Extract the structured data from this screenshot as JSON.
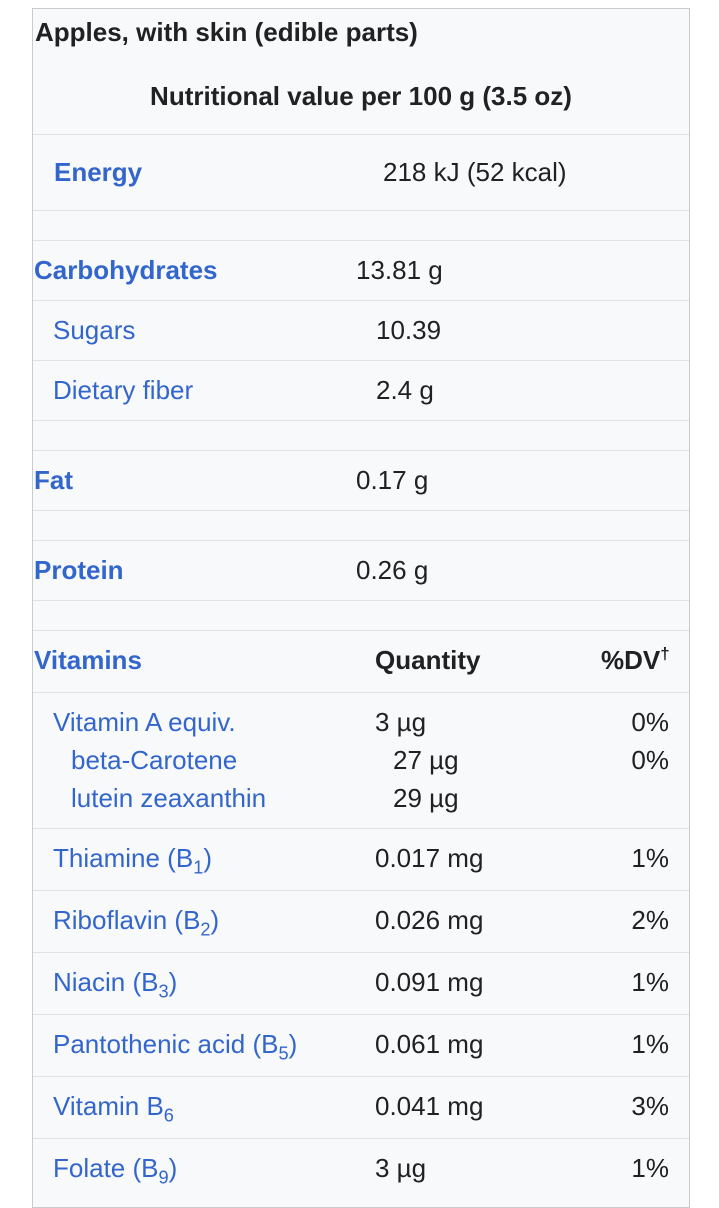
{
  "infobox": {
    "title": "Apples, with skin (edible parts)",
    "subtitle": "Nutritional value per 100 g (3.5 oz)",
    "energy": {
      "label": "Energy",
      "value": "218 kJ (52 kcal)"
    },
    "carbohydrates": {
      "label": "Carbohydrates",
      "value": "13.81 g"
    },
    "sugars": {
      "label": "Sugars",
      "value": "10.39"
    },
    "fiber": {
      "label": "Dietary fiber",
      "value": "2.4 g"
    },
    "fat": {
      "label": "Fat",
      "value": "0.17 g"
    },
    "protein": {
      "label": "Protein",
      "value": "0.26 g"
    },
    "vitamins_header": {
      "label": "Vitamins",
      "quantity": "Quantity",
      "dv": "%DV",
      "dagger": "†"
    },
    "vitamins": {
      "vitamin_a": {
        "label": "Vitamin A equiv.",
        "quantity": "3 µg",
        "dv": "0%"
      },
      "beta_carotene": {
        "label": "beta-Carotene",
        "quantity": "27 µg",
        "dv": "0%"
      },
      "lutein": {
        "label": "lutein zeaxanthin",
        "quantity": "29 µg"
      },
      "thiamine": {
        "label": "Thiamine",
        "sub": "1",
        "quantity": "0.017 mg",
        "dv": "1%"
      },
      "riboflavin": {
        "label": "Riboflavin",
        "sub": "2",
        "quantity": "0.026 mg",
        "dv": "2%"
      },
      "niacin": {
        "label": "Niacin",
        "sub": "3",
        "quantity": "0.091 mg",
        "dv": "1%"
      },
      "pantothenic": {
        "label": "Pantothenic acid",
        "sub": "5",
        "quantity": "0.061 mg",
        "dv": "1%"
      },
      "b6": {
        "label": "Vitamin B",
        "sub": "6",
        "quantity": "0.041 mg",
        "dv": "3%"
      },
      "folate": {
        "label": "Folate",
        "sub": "9",
        "quantity": "3 µg",
        "dv": "1%"
      }
    },
    "b_letter": "B",
    "colors": {
      "link": "#3366cc",
      "border": "#c8ccd1",
      "background": "#f8f9fa"
    }
  }
}
